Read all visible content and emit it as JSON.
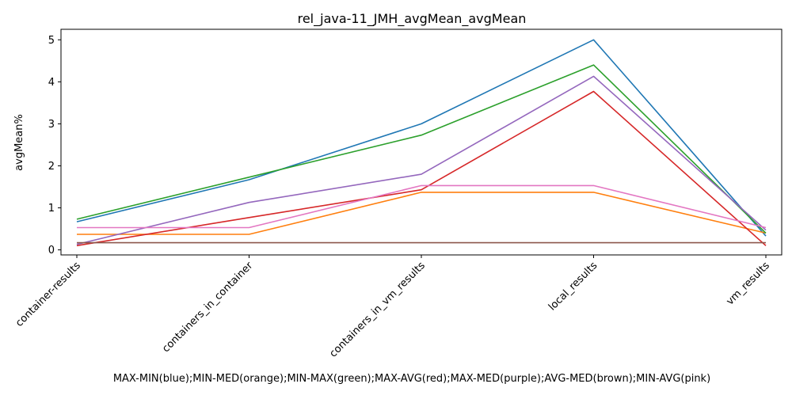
{
  "chart_data": {
    "type": "line",
    "title": "rel_java-11_JMH_avgMean_avgMean",
    "xlabel": "MAX-MIN(blue);MIN-MED(orange);MIN-MAX(green);MAX-AVG(red);MAX-MED(purple);AVG-MED(brown);MIN-AVG(pink)",
    "ylabel": "avgMean%",
    "categories": [
      "container-results",
      "containers_in_container",
      "containers_in_vm_results",
      "local_results",
      "vm_results"
    ],
    "ylim": [
      -0.12,
      5.25
    ],
    "yticks": [
      0,
      1,
      2,
      3,
      4,
      5
    ],
    "grid": false,
    "legend": "none",
    "series": [
      {
        "color": "#1f77b4",
        "values": [
          0.67,
          1.67,
          3.0,
          5.0,
          0.33
        ]
      },
      {
        "color": "#ff7f0e",
        "values": [
          0.37,
          0.37,
          1.37,
          1.37,
          0.4
        ]
      },
      {
        "color": "#2ca02c",
        "values": [
          0.73,
          1.73,
          2.73,
          4.4,
          0.4
        ]
      },
      {
        "color": "#d62728",
        "values": [
          0.1,
          0.77,
          1.43,
          3.77,
          0.1
        ]
      },
      {
        "color": "#9467bd",
        "values": [
          0.13,
          1.13,
          1.8,
          4.13,
          0.47
        ]
      },
      {
        "color": "#8c564b",
        "values": [
          0.17,
          0.17,
          0.17,
          0.17,
          0.17
        ]
      },
      {
        "color": "#e377c2",
        "values": [
          0.53,
          0.53,
          1.53,
          1.53,
          0.53
        ]
      }
    ]
  }
}
